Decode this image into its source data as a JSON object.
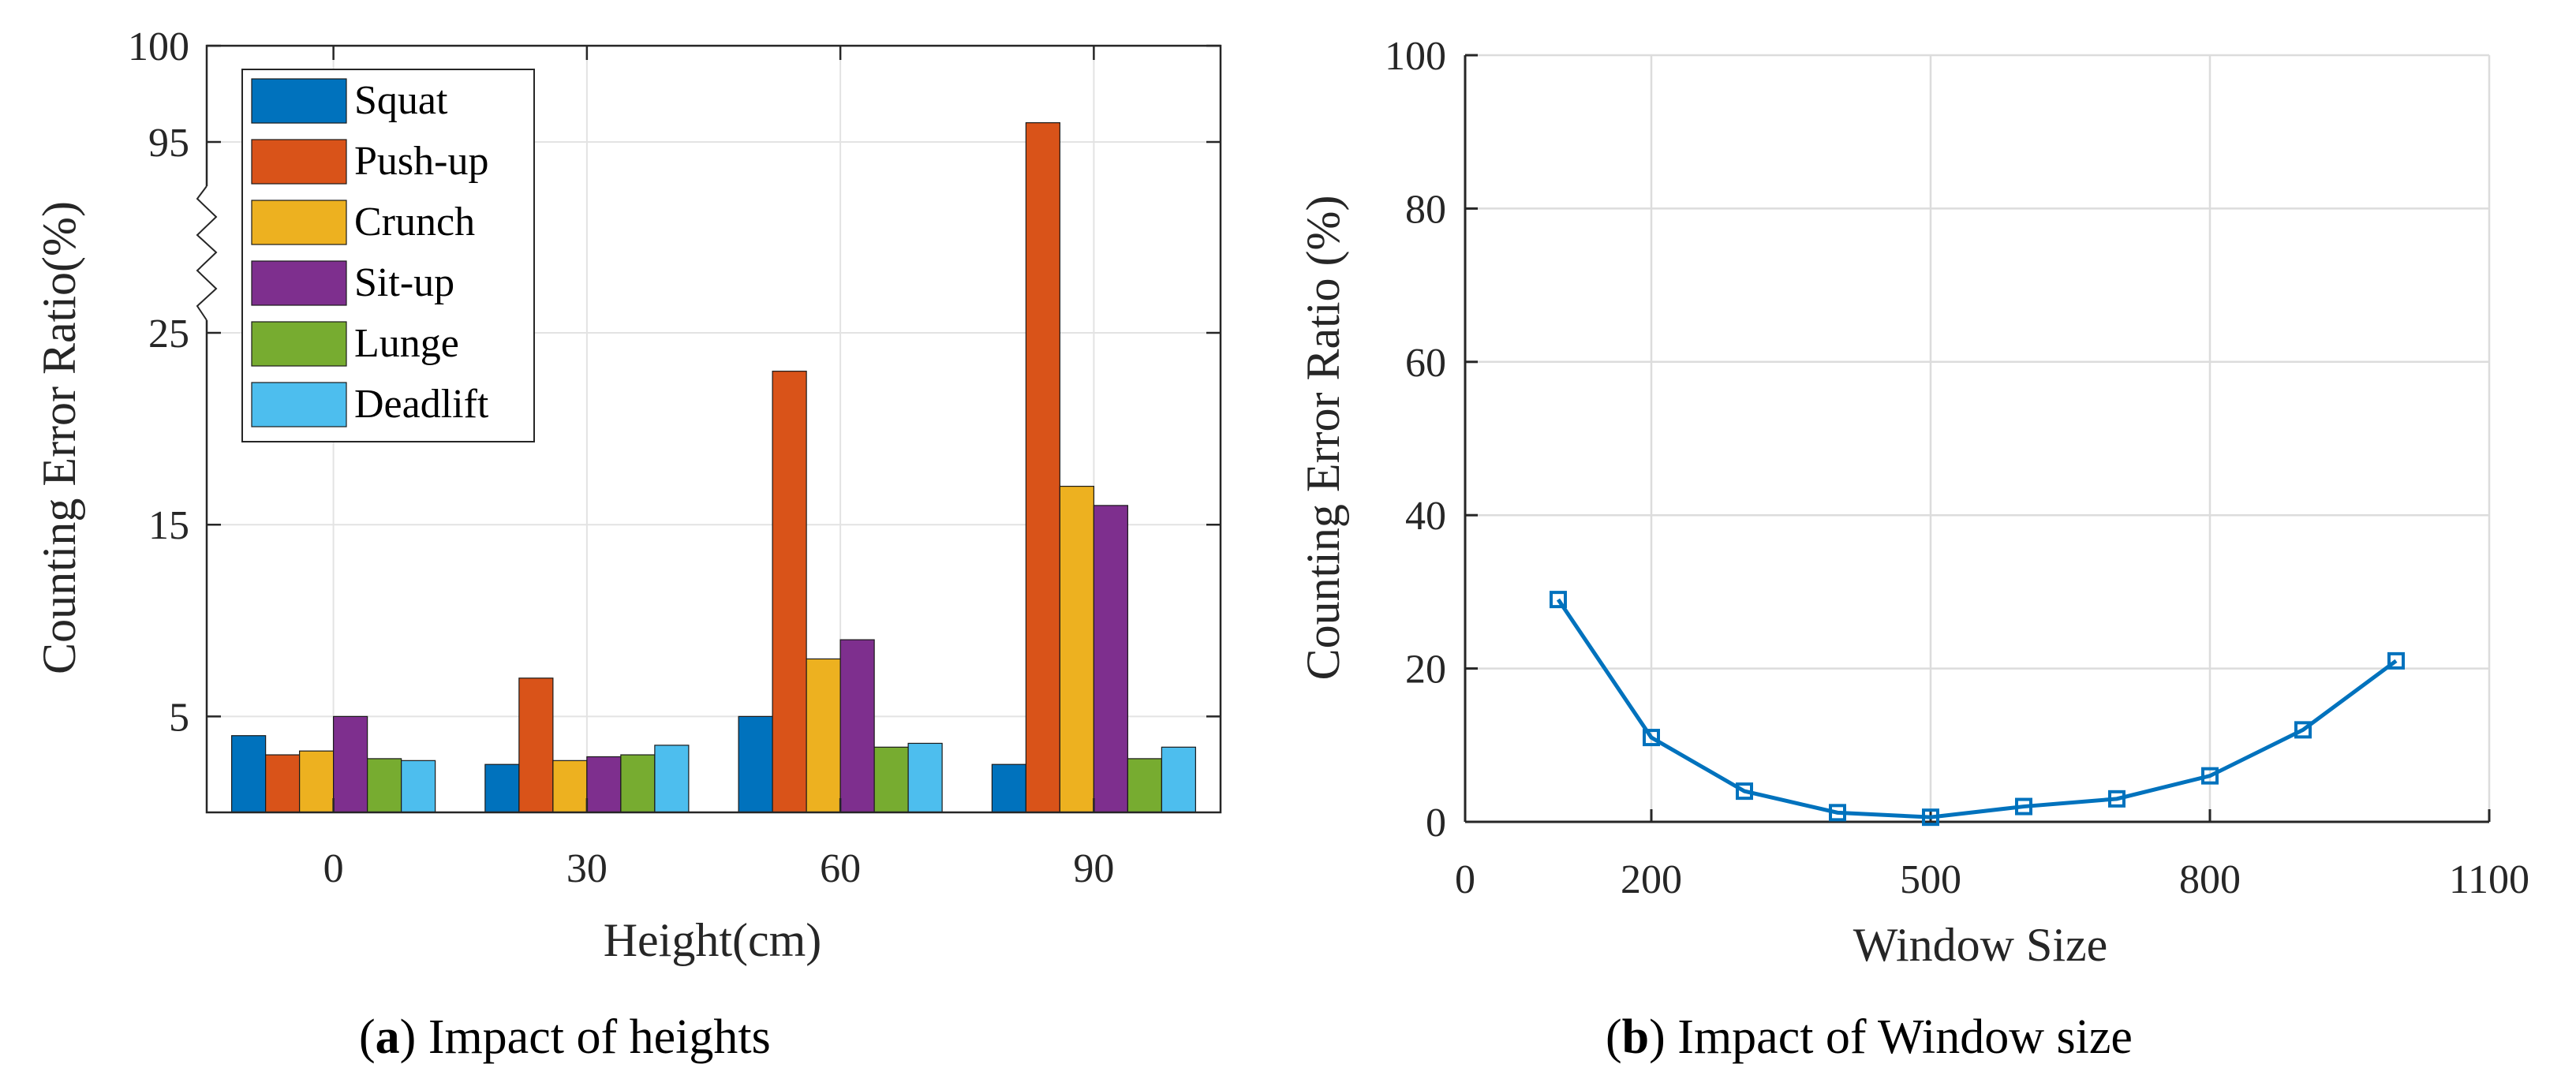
{
  "chart_data": [
    {
      "type": "bar",
      "title": "",
      "xlabel": "Height(cm)",
      "ylabel": "Counting Error Ratio(%)",
      "categories": [
        "0",
        "30",
        "60",
        "90"
      ],
      "y_ticks": [
        "5",
        "15",
        "25",
        "95",
        "100"
      ],
      "axis_break": "between 25 and 95",
      "legend_position": "top-left",
      "grid": true,
      "series": [
        {
          "name": "Squat",
          "color": "#0072BD",
          "values": [
            4,
            2.5,
            5,
            2.5
          ]
        },
        {
          "name": "Push-up",
          "color": "#D95319",
          "values": [
            3,
            7,
            23,
            96
          ]
        },
        {
          "name": "Crunch",
          "color": "#EDB120",
          "values": [
            3.2,
            2.7,
            8,
            17
          ]
        },
        {
          "name": "Sit-up",
          "color": "#7E2F8E",
          "values": [
            5,
            2.9,
            9,
            16
          ]
        },
        {
          "name": "Lunge",
          "color": "#77AC30",
          "values": [
            2.8,
            3,
            3.4,
            2.8
          ]
        },
        {
          "name": "Deadlift",
          "color": "#4DBEEE",
          "values": [
            2.7,
            3.5,
            3.6,
            3.4
          ]
        }
      ],
      "caption": {
        "label": "a",
        "text": "Impact of heights"
      }
    },
    {
      "type": "line",
      "title": "",
      "xlabel": "Window Size",
      "ylabel": "Counting Error Ratio (%)",
      "xlim": [
        0,
        1100
      ],
      "ylim": [
        0,
        100
      ],
      "x_ticks": [
        0,
        200,
        500,
        800,
        1100
      ],
      "y_ticks": [
        0,
        20,
        40,
        60,
        80,
        100
      ],
      "grid": true,
      "marker": "square",
      "color": "#0072BD",
      "series": [
        {
          "name": "Counting Error Ratio",
          "x": [
            100,
            200,
            300,
            400,
            500,
            600,
            700,
            800,
            900,
            1000
          ],
          "y": [
            29,
            11,
            4,
            1.2,
            0.6,
            2,
            3,
            6,
            12,
            21
          ]
        }
      ],
      "caption": {
        "label": "b",
        "text": "Impact of Window size"
      }
    }
  ]
}
